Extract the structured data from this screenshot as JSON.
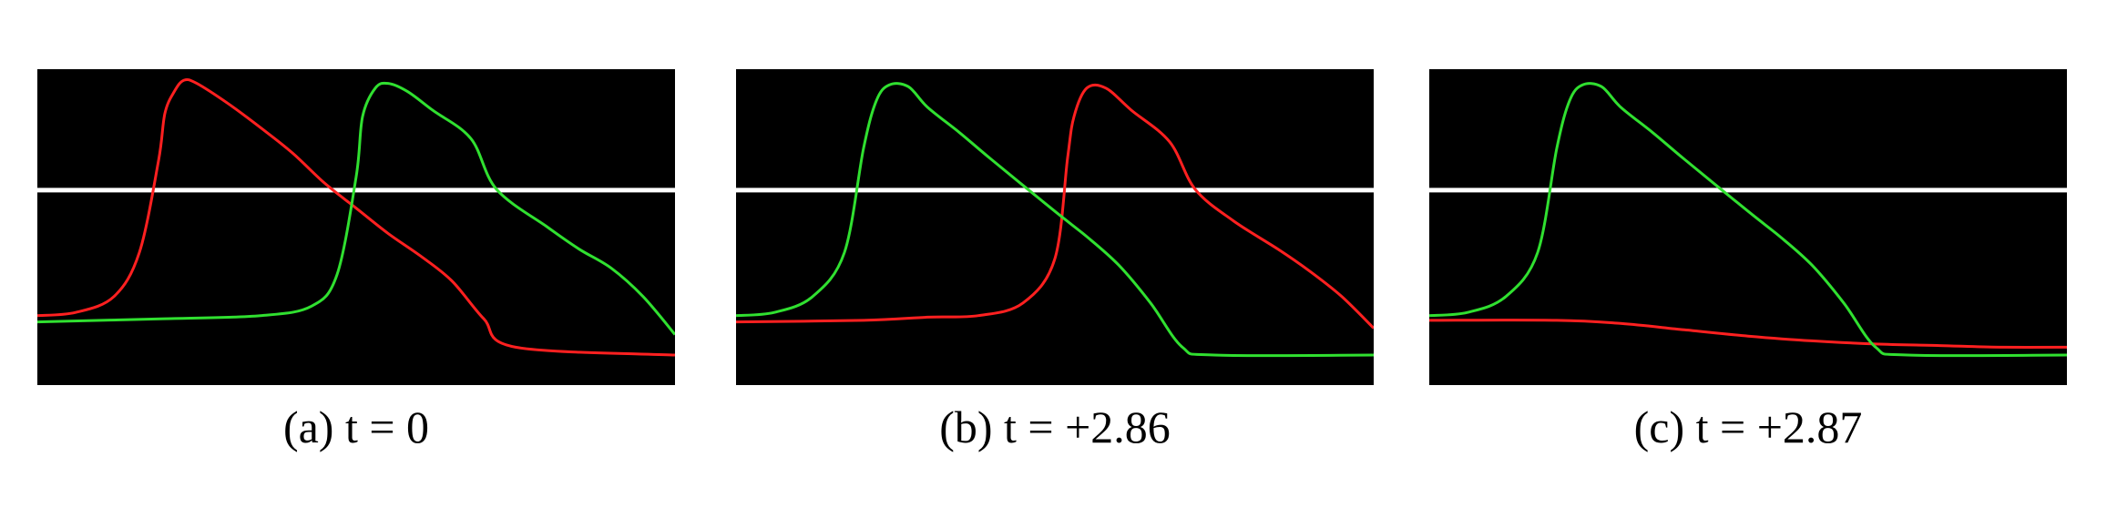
{
  "chart_data": [
    {
      "type": "line",
      "caption": "(a) t = 0",
      "xlim": [
        0,
        1
      ],
      "ylim": [
        0,
        1
      ],
      "background": "#000000",
      "grid": false,
      "series": [
        {
          "color": "#ffffff",
          "x": [
            0,
            1
          ],
          "y": [
            0.617,
            0.617
          ]
        },
        {
          "color": "#ff2020",
          "x": [
            0,
            0.06,
            0.12,
            0.16,
            0.19,
            0.2,
            0.215,
            0.23,
            0.25,
            0.3,
            0.35,
            0.4,
            0.45,
            0.5,
            0.55,
            0.6,
            0.65,
            0.7,
            0.75,
            1.0
          ],
          "y": [
            0.22,
            0.23,
            0.28,
            0.42,
            0.71,
            0.86,
            0.93,
            0.965,
            0.955,
            0.89,
            0.815,
            0.735,
            0.64,
            0.56,
            0.48,
            0.41,
            0.33,
            0.21,
            0.12,
            0.095
          ]
        },
        {
          "color": "#30e030",
          "x": [
            0,
            0.2,
            0.35,
            0.43,
            0.47,
            0.5,
            0.51,
            0.53,
            0.55,
            0.58,
            0.62,
            0.68,
            0.72,
            0.8,
            0.85,
            0.9,
            0.95,
            1.0
          ],
          "y": [
            0.2,
            0.21,
            0.22,
            0.25,
            0.35,
            0.66,
            0.85,
            0.94,
            0.955,
            0.93,
            0.87,
            0.78,
            0.62,
            0.5,
            0.43,
            0.37,
            0.28,
            0.16
          ]
        }
      ]
    },
    {
      "type": "line",
      "caption": "(b) t = +2.86",
      "xlim": [
        0,
        1
      ],
      "ylim": [
        0,
        1
      ],
      "background": "#000000",
      "grid": false,
      "series": [
        {
          "color": "#ffffff",
          "x": [
            0,
            1
          ],
          "y": [
            0.617,
            0.617
          ]
        },
        {
          "color": "#ff2020",
          "x": [
            0,
            0.2,
            0.3,
            0.38,
            0.45,
            0.5,
            0.52,
            0.53,
            0.55,
            0.58,
            0.62,
            0.68,
            0.72,
            0.78,
            0.85,
            0.9,
            0.95,
            1.0
          ],
          "y": [
            0.2,
            0.205,
            0.215,
            0.22,
            0.26,
            0.4,
            0.72,
            0.85,
            0.94,
            0.94,
            0.87,
            0.77,
            0.62,
            0.52,
            0.43,
            0.36,
            0.28,
            0.18
          ]
        },
        {
          "color": "#30e030",
          "x": [
            0,
            0.06,
            0.12,
            0.17,
            0.2,
            0.22,
            0.24,
            0.27,
            0.3,
            0.35,
            0.4,
            0.5,
            0.55,
            0.6,
            0.65,
            0.7,
            0.75,
            1.0
          ],
          "y": [
            0.22,
            0.23,
            0.28,
            0.42,
            0.75,
            0.9,
            0.95,
            0.945,
            0.88,
            0.8,
            0.715,
            0.55,
            0.47,
            0.38,
            0.26,
            0.12,
            0.095,
            0.095
          ]
        }
      ]
    },
    {
      "type": "line",
      "caption": "(c) t = +2.87",
      "xlim": [
        0,
        1
      ],
      "ylim": [
        0,
        1
      ],
      "background": "#000000",
      "grid": false,
      "series": [
        {
          "color": "#ffffff",
          "x": [
            0,
            1
          ],
          "y": [
            0.617,
            0.617
          ]
        },
        {
          "color": "#ff2020",
          "x": [
            0,
            0.2,
            0.3,
            0.4,
            0.5,
            0.6,
            0.7,
            0.8,
            0.9,
            1.0
          ],
          "y": [
            0.205,
            0.205,
            0.195,
            0.175,
            0.155,
            0.14,
            0.13,
            0.125,
            0.12,
            0.12
          ]
        },
        {
          "color": "#30e030",
          "x": [
            0,
            0.06,
            0.12,
            0.17,
            0.2,
            0.22,
            0.24,
            0.27,
            0.3,
            0.35,
            0.4,
            0.5,
            0.55,
            0.6,
            0.65,
            0.7,
            0.75,
            1.0
          ],
          "y": [
            0.22,
            0.23,
            0.28,
            0.42,
            0.75,
            0.9,
            0.95,
            0.945,
            0.88,
            0.8,
            0.715,
            0.55,
            0.47,
            0.38,
            0.26,
            0.12,
            0.095,
            0.095
          ]
        }
      ]
    }
  ]
}
